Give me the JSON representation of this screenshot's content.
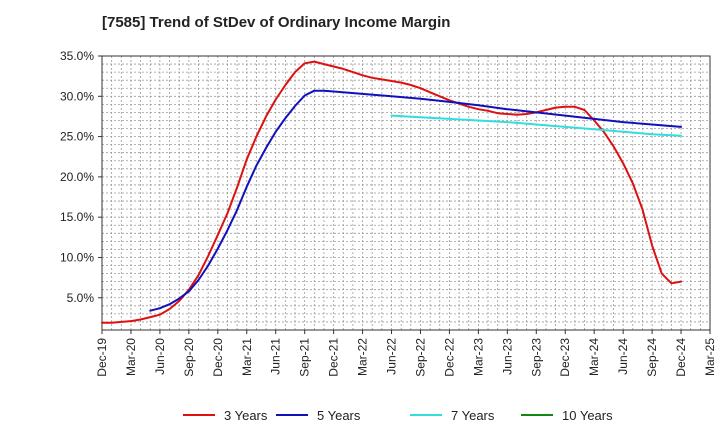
{
  "chart_data": {
    "type": "line",
    "title": "[7585]  Trend of StDev of Ordinary Income Margin",
    "xlabel": "",
    "ylabel": "",
    "ylim": [
      1.0,
      35.0
    ],
    "y_ticks": [
      "35.0%",
      "30.0%",
      "25.0%",
      "20.0%",
      "15.0%",
      "10.0%",
      "5.0%"
    ],
    "y_tick_values": [
      35,
      30,
      25,
      20,
      15,
      10,
      5
    ],
    "x_ticks": [
      "Dec-19",
      "Mar-20",
      "Jun-20",
      "Sep-20",
      "Dec-20",
      "Mar-21",
      "Jun-21",
      "Sep-21",
      "Dec-21",
      "Mar-22",
      "Jun-22",
      "Sep-22",
      "Dec-22",
      "Mar-23",
      "Jun-23",
      "Sep-23",
      "Dec-23",
      "Mar-24",
      "Jun-24",
      "Sep-24",
      "Dec-24",
      "Mar-25"
    ],
    "grid": true,
    "legend_position": "bottom",
    "series": [
      {
        "name": "3 Years",
        "color": "#dd1111",
        "points": [
          [
            "Dec-19",
            1.9
          ],
          [
            "Jan-20",
            1.9
          ],
          [
            "Feb-20",
            2.0
          ],
          [
            "Mar-20",
            2.1
          ],
          [
            "Apr-20",
            2.3
          ],
          [
            "May-20",
            2.6
          ],
          [
            "Jun-20",
            2.9
          ],
          [
            "Jul-20",
            3.6
          ],
          [
            "Aug-20",
            4.6
          ],
          [
            "Sep-20",
            6.0
          ],
          [
            "Oct-20",
            7.8
          ],
          [
            "Nov-20",
            10.2
          ],
          [
            "Dec-20",
            12.8
          ],
          [
            "Jan-21",
            15.5
          ],
          [
            "Feb-21",
            18.7
          ],
          [
            "Mar-21",
            22.2
          ],
          [
            "Apr-21",
            25.0
          ],
          [
            "May-21",
            27.5
          ],
          [
            "Jun-21",
            29.6
          ],
          [
            "Jul-21",
            31.4
          ],
          [
            "Aug-21",
            33.0
          ],
          [
            "Sep-21",
            34.1
          ],
          [
            "Oct-21",
            34.3
          ],
          [
            "Nov-21",
            34.0
          ],
          [
            "Dec-21",
            33.7
          ],
          [
            "Jan-22",
            33.4
          ],
          [
            "Feb-22",
            33.0
          ],
          [
            "Mar-22",
            32.6
          ],
          [
            "Apr-22",
            32.3
          ],
          [
            "May-22",
            32.1
          ],
          [
            "Jun-22",
            31.9
          ],
          [
            "Jul-22",
            31.7
          ],
          [
            "Aug-22",
            31.4
          ],
          [
            "Sep-22",
            31.0
          ],
          [
            "Oct-22",
            30.5
          ],
          [
            "Nov-22",
            30.0
          ],
          [
            "Dec-22",
            29.5
          ],
          [
            "Jan-23",
            29.1
          ],
          [
            "Feb-23",
            28.7
          ],
          [
            "Mar-23",
            28.4
          ],
          [
            "Apr-23",
            28.2
          ],
          [
            "May-23",
            27.9
          ],
          [
            "Jun-23",
            27.8
          ],
          [
            "Jul-23",
            27.7
          ],
          [
            "Aug-23",
            27.8
          ],
          [
            "Sep-23",
            28.0
          ],
          [
            "Oct-23",
            28.3
          ],
          [
            "Nov-23",
            28.6
          ],
          [
            "Dec-23",
            28.7
          ],
          [
            "Jan-24",
            28.7
          ],
          [
            "Feb-24",
            28.3
          ],
          [
            "Mar-24",
            27.0
          ],
          [
            "Apr-24",
            25.6
          ],
          [
            "May-24",
            23.8
          ],
          [
            "Jun-24",
            21.7
          ],
          [
            "Jul-24",
            19.2
          ],
          [
            "Aug-24",
            16.0
          ],
          [
            "Sep-24",
            11.5
          ],
          [
            "Oct-24",
            8.0
          ],
          [
            "Nov-24",
            6.8
          ],
          [
            "Dec-24",
            7.0
          ]
        ]
      },
      {
        "name": "5 Years",
        "color": "#1111bb",
        "points": [
          [
            "May-20",
            3.4
          ],
          [
            "Jun-20",
            3.7
          ],
          [
            "Jul-20",
            4.2
          ],
          [
            "Aug-20",
            4.9
          ],
          [
            "Sep-20",
            5.8
          ],
          [
            "Oct-20",
            7.2
          ],
          [
            "Nov-20",
            9.0
          ],
          [
            "Dec-20",
            11.1
          ],
          [
            "Jan-21",
            13.4
          ],
          [
            "Feb-21",
            15.9
          ],
          [
            "Mar-21",
            18.8
          ],
          [
            "Apr-21",
            21.4
          ],
          [
            "May-21",
            23.6
          ],
          [
            "Jun-21",
            25.6
          ],
          [
            "Jul-21",
            27.3
          ],
          [
            "Aug-21",
            28.8
          ],
          [
            "Sep-21",
            30.1
          ],
          [
            "Oct-21",
            30.7
          ],
          [
            "Nov-21",
            30.7
          ],
          [
            "Dec-21",
            30.6
          ],
          [
            "Mar-22",
            30.3
          ],
          [
            "Jun-22",
            30.0
          ],
          [
            "Sep-22",
            29.7
          ],
          [
            "Dec-22",
            29.3
          ],
          [
            "Mar-23",
            28.9
          ],
          [
            "Jun-23",
            28.4
          ],
          [
            "Sep-23",
            28.0
          ],
          [
            "Dec-23",
            27.6
          ],
          [
            "Mar-24",
            27.2
          ],
          [
            "Jun-24",
            26.8
          ],
          [
            "Sep-24",
            26.5
          ],
          [
            "Dec-24",
            26.2
          ]
        ]
      },
      {
        "name": "7 Years",
        "color": "#33dddd",
        "points": [
          [
            "Jun-22",
            27.6
          ],
          [
            "Sep-22",
            27.4
          ],
          [
            "Dec-22",
            27.2
          ],
          [
            "Mar-23",
            27.0
          ],
          [
            "Jun-23",
            26.8
          ],
          [
            "Sep-23",
            26.5
          ],
          [
            "Dec-23",
            26.2
          ],
          [
            "Mar-24",
            25.9
          ],
          [
            "Jun-24",
            25.6
          ],
          [
            "Sep-24",
            25.3
          ],
          [
            "Dec-24",
            25.1
          ]
        ]
      },
      {
        "name": "10 Years",
        "color": "#118811",
        "points": []
      }
    ]
  }
}
